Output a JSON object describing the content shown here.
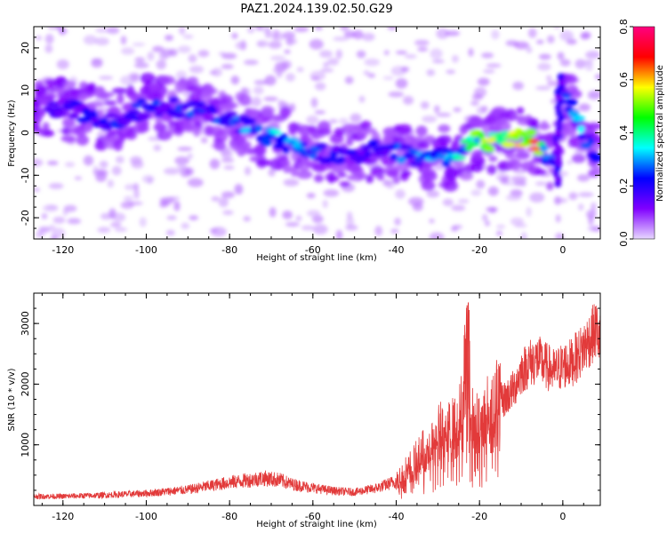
{
  "title": "PAZ1.2024.139.02.50.G29",
  "chart_data": [
    {
      "type": "heatmap",
      "xlabel": "Height of straight line (km)",
      "ylabel": "Frequency (Hz)",
      "xlim": [
        -127,
        9
      ],
      "ylim": [
        -25,
        25
      ],
      "xticks": [
        -120,
        -100,
        -80,
        -60,
        -40,
        -20,
        0
      ],
      "yticks": [
        -20,
        -10,
        0,
        10,
        20
      ],
      "colorbar": {
        "label": "Normalized spectral amplitude",
        "range": [
          0.0,
          0.8
        ],
        "ticks": [
          0.0,
          0.2,
          0.4,
          0.6,
          0.8
        ],
        "colors": [
          "#e8d8ff",
          "#8000ff",
          "#0000ff",
          "#00ffff",
          "#00ff00",
          "#ffff00",
          "#ff0000",
          "#ff0080"
        ]
      },
      "ridge": [
        {
          "x": -120,
          "f": 6,
          "amp": 0.15
        },
        {
          "x": -108,
          "f": 3,
          "amp": 0.25
        },
        {
          "x": -100,
          "f": 6,
          "amp": 0.22
        },
        {
          "x": -92,
          "f": 6,
          "amp": 0.23
        },
        {
          "x": -84,
          "f": 4,
          "amp": 0.25
        },
        {
          "x": -76,
          "f": 2,
          "amp": 0.28
        },
        {
          "x": -70,
          "f": -1,
          "amp": 0.32
        },
        {
          "x": -64,
          "f": -3,
          "amp": 0.28
        },
        {
          "x": -58,
          "f": -5,
          "amp": 0.24
        },
        {
          "x": -52,
          "f": -6,
          "amp": 0.2
        },
        {
          "x": -46,
          "f": -4,
          "amp": 0.2
        },
        {
          "x": -40,
          "f": -5,
          "amp": 0.25
        },
        {
          "x": -34,
          "f": -6,
          "amp": 0.3
        },
        {
          "x": -28,
          "f": -6,
          "amp": 0.28
        },
        {
          "x": -22,
          "f": -2,
          "amp": 0.45
        },
        {
          "x": -16,
          "f": -2,
          "amp": 0.5
        },
        {
          "x": -12,
          "f": -1,
          "amp": 0.55
        },
        {
          "x": -8,
          "f": -1,
          "amp": 0.7
        },
        {
          "x": -2,
          "f": -8,
          "amp": 0.2
        },
        {
          "x": 0,
          "f": 10,
          "amp": 0.2
        },
        {
          "x": 4,
          "f": 1,
          "amp": 0.35
        },
        {
          "x": 8,
          "f": -5,
          "amp": 0.2
        }
      ]
    },
    {
      "type": "line",
      "xlabel": "Height of straight line (km)",
      "ylabel": "SNR (10 * v/v)",
      "xlim": [
        -127,
        9
      ],
      "ylim": [
        0,
        3500
      ],
      "xticks": [
        -120,
        -100,
        -80,
        -60,
        -40,
        -20,
        0
      ],
      "yticks": [
        1000,
        2000,
        3000
      ],
      "line_color": "#e23a3a",
      "series": [
        {
          "x": [
            -127,
            -120,
            -110,
            -100,
            -90,
            -85,
            -80,
            -75,
            -72,
            -68,
            -65,
            -60,
            -55,
            -50,
            -45,
            -42,
            -40,
            -38,
            -35,
            -32,
            -30,
            -28,
            -26,
            -24,
            -23,
            -22,
            -20,
            -18,
            -16,
            -14,
            -12,
            -10,
            -8,
            -6,
            -4,
            -2,
            0,
            2,
            4,
            6,
            8,
            9
          ],
          "y": [
            150,
            150,
            170,
            200,
            260,
            320,
            380,
            420,
            450,
            420,
            350,
            290,
            240,
            220,
            280,
            350,
            400,
            550,
            750,
            1000,
            1150,
            1300,
            1250,
            1600,
            3300,
            1400,
            1300,
            1500,
            1700,
            1750,
            1900,
            2200,
            2350,
            2400,
            2300,
            2200,
            2300,
            2350,
            2500,
            2700,
            2900,
            2700
          ]
        }
      ]
    }
  ]
}
